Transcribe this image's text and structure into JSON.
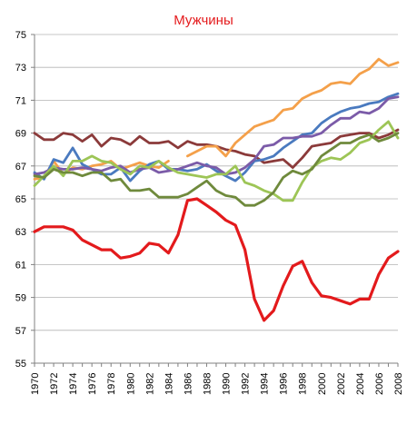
{
  "chart_data": {
    "type": "line",
    "title": "Мужчины",
    "xlabel": "",
    "ylabel": "",
    "xlim": [
      1970,
      2008
    ],
    "ylim": [
      55,
      75
    ],
    "y_ticks": [
      55,
      57,
      59,
      61,
      63,
      65,
      67,
      69,
      71,
      73,
      75
    ],
    "x_ticks": [
      1970,
      1972,
      1974,
      1976,
      1978,
      1980,
      1982,
      1984,
      1986,
      1988,
      1990,
      1992,
      1994,
      1996,
      1998,
      2000,
      2002,
      2004,
      2006,
      2008
    ],
    "grid": "horizontal",
    "legend": "none",
    "series": [
      {
        "color": "#e31a1c",
        "x": [
          1970,
          1971,
          1972,
          1973,
          1974,
          1975,
          1976,
          1977,
          1978,
          1979,
          1980,
          1981,
          1982,
          1983,
          1984,
          1985,
          1986,
          1987,
          1988,
          1989,
          1990,
          1991,
          1992,
          1993,
          1994,
          1995,
          1996,
          1997,
          1998,
          1999,
          2000,
          2001,
          2002,
          2003,
          2004,
          2005,
          2006,
          2007,
          2008
        ],
        "y": [
          63.0,
          63.3,
          63.3,
          63.3,
          63.1,
          62.5,
          62.2,
          61.9,
          61.9,
          61.4,
          61.5,
          61.7,
          62.3,
          62.2,
          61.7,
          62.8,
          64.9,
          65.0,
          64.6,
          64.2,
          63.7,
          63.4,
          61.9,
          58.9,
          57.6,
          58.2,
          59.7,
          60.9,
          61.2,
          59.9,
          59.1,
          59.0,
          58.8,
          58.6,
          58.9,
          58.9,
          60.4,
          61.4,
          61.8
        ]
      },
      {
        "color": "#8b3a3a",
        "x": [
          1970,
          1971,
          1972,
          1973,
          1974,
          1975,
          1976,
          1977,
          1978,
          1979,
          1980,
          1981,
          1982,
          1983,
          1984,
          1985,
          1986,
          1987,
          1988,
          1989,
          1990,
          1991,
          1992,
          1993,
          1994,
          1995,
          1996,
          1997,
          1998,
          1999,
          2000,
          2001,
          2002,
          2003,
          2004,
          2005,
          2006,
          2007,
          2008
        ],
        "y": [
          69.0,
          68.6,
          68.6,
          69.0,
          68.9,
          68.5,
          68.9,
          68.2,
          68.7,
          68.6,
          68.3,
          68.8,
          68.4,
          68.4,
          68.5,
          68.1,
          68.5,
          68.3,
          68.3,
          68.2,
          68.0,
          67.9,
          67.7,
          67.6,
          67.2,
          67.3,
          67.4,
          66.9,
          67.5,
          68.2,
          68.3,
          68.4,
          68.8,
          68.9,
          69.0,
          69.0,
          68.7,
          68.9,
          69.2
        ]
      },
      {
        "color": "#f4a04a",
        "x": [
          1970,
          1971,
          1972,
          1973,
          1974,
          1975,
          1976,
          1977,
          1978,
          1979,
          1980,
          1981,
          1982,
          1983,
          1984
        ],
        "y": [
          66.2,
          66.3,
          67.3,
          66.5,
          66.9,
          66.8,
          67.0,
          67.1,
          67.3,
          66.8,
          67.0,
          67.2,
          67.0,
          66.9,
          67.3
        ]
      },
      {
        "color": "#f4a04a",
        "x": [
          1986,
          1987,
          1988,
          1989,
          1990,
          1991,
          1992,
          1993,
          1994,
          1995,
          1996,
          1997,
          1998,
          1999,
          2000,
          2001,
          2002,
          2003,
          2004,
          2005,
          2006,
          2007,
          2008
        ],
        "y": [
          67.6,
          67.9,
          68.2,
          68.2,
          67.6,
          68.4,
          68.9,
          69.4,
          69.6,
          69.8,
          70.4,
          70.5,
          71.1,
          71.4,
          71.6,
          72.0,
          72.1,
          72.0,
          72.6,
          72.9,
          73.5,
          73.1,
          73.3
        ]
      },
      {
        "color": "#4a7abf",
        "x": [
          1970,
          1971,
          1972,
          1973,
          1974,
          1975,
          1976,
          1977,
          1978,
          1979,
          1980,
          1981,
          1982,
          1983,
          1984,
          1985,
          1986,
          1987,
          1988,
          1989,
          1990,
          1991,
          1992,
          1993,
          1994,
          1995,
          1996,
          1997,
          1998,
          1999,
          2000,
          2001,
          2002,
          2003,
          2004,
          2005,
          2006,
          2007,
          2008
        ],
        "y": [
          66.6,
          66.2,
          67.4,
          67.2,
          68.1,
          67.1,
          66.8,
          66.5,
          66.5,
          66.9,
          66.1,
          66.7,
          67.1,
          67.3,
          66.8,
          66.8,
          66.7,
          66.8,
          67.1,
          66.7,
          66.4,
          66.1,
          66.6,
          67.3,
          67.4,
          67.6,
          68.1,
          68.5,
          68.9,
          69.0,
          69.6,
          70.0,
          70.3,
          70.5,
          70.6,
          70.8,
          70.9,
          71.2,
          71.4
        ]
      },
      {
        "color": "#7b5ba8",
        "x": [
          1970,
          1971,
          1972,
          1973,
          1974,
          1975,
          1976,
          1977,
          1978,
          1979,
          1980,
          1981,
          1982,
          1983,
          1984,
          1985,
          1986,
          1987,
          1988,
          1989,
          1990,
          1991,
          1992,
          1993,
          1994,
          1995,
          1996,
          1997,
          1998,
          1999,
          2000,
          2001,
          2002,
          2003,
          2004,
          2005,
          2006,
          2007,
          2008
        ],
        "y": [
          66.5,
          66.6,
          66.9,
          66.8,
          66.8,
          66.9,
          66.8,
          66.7,
          66.9,
          67.0,
          66.6,
          66.8,
          66.9,
          66.6,
          66.7,
          66.8,
          67.0,
          67.2,
          67.0,
          66.9,
          66.5,
          66.6,
          66.9,
          67.4,
          68.2,
          68.3,
          68.7,
          68.7,
          68.8,
          68.8,
          69.0,
          69.5,
          69.9,
          69.9,
          70.3,
          70.2,
          70.5,
          71.1,
          71.2
        ]
      },
      {
        "color": "#9dc556",
        "x": [
          1970,
          1971,
          1972,
          1973,
          1974,
          1975,
          1976,
          1977,
          1978,
          1979,
          1980,
          1981,
          1982,
          1983,
          1984,
          1985,
          1986,
          1987,
          1988,
          1989,
          1990,
          1991,
          1992,
          1993,
          1994,
          1995,
          1996,
          1997,
          1998,
          1999,
          2000,
          2001,
          2002,
          2003,
          2004,
          2005,
          2006,
          2007,
          2008
        ],
        "y": [
          65.8,
          66.4,
          67.0,
          66.4,
          67.3,
          67.3,
          67.6,
          67.3,
          67.2,
          66.8,
          66.5,
          67.0,
          66.9,
          67.3,
          66.9,
          66.6,
          66.5,
          66.4,
          66.3,
          66.5,
          66.5,
          67.0,
          66.0,
          65.8,
          65.5,
          65.3,
          64.9,
          64.9,
          66.0,
          66.9,
          67.3,
          67.5,
          67.4,
          67.8,
          68.4,
          68.6,
          69.2,
          69.7,
          68.7
        ]
      },
      {
        "color": "#6f8a3c",
        "x": [
          1970,
          1971,
          1972,
          1973,
          1974,
          1975,
          1976,
          1977,
          1978,
          1979,
          1980,
          1981,
          1982,
          1983,
          1984,
          1985,
          1986,
          1987,
          1988,
          1989,
          1990,
          1991,
          1992,
          1993,
          1994,
          1995,
          1996,
          1997,
          1998,
          1999,
          2000,
          2001,
          2002,
          2003,
          2004,
          2005,
          2006,
          2007,
          2008
        ],
        "y": [
          66.4,
          66.3,
          66.8,
          66.6,
          66.6,
          66.4,
          66.6,
          66.6,
          66.1,
          66.2,
          65.5,
          65.5,
          65.6,
          65.1,
          65.1,
          65.1,
          65.3,
          65.7,
          66.1,
          65.5,
          65.2,
          65.1,
          64.6,
          64.6,
          64.9,
          65.4,
          66.3,
          66.7,
          66.5,
          66.8,
          67.6,
          68.0,
          68.4,
          68.4,
          68.7,
          68.9,
          68.5,
          68.7,
          69.0
        ]
      }
    ]
  }
}
